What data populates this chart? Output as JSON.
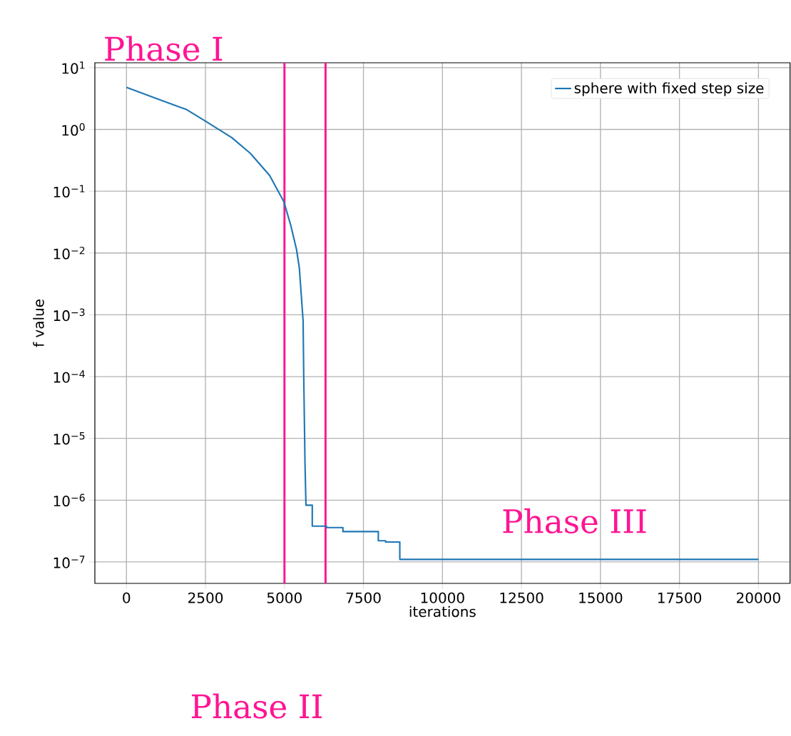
{
  "chart_data": {
    "type": "line",
    "xlabel": "iterations",
    "ylabel": "f value",
    "x": [
      0,
      1000,
      1900,
      2500,
      3330,
      3920,
      4530,
      4980,
      5200,
      5380,
      5470,
      5590,
      5610,
      5650,
      5680,
      5880,
      5880,
      6330,
      6330,
      6850,
      6850,
      7970,
      7970,
      8200,
      8200,
      8650,
      8650,
      20000
    ],
    "series": [
      {
        "name": "sphere with fixed step size",
        "color": "#1f77b4",
        "values": [
          4.8,
          3.1,
          2.1,
          1.36,
          0.74,
          0.41,
          0.18,
          0.068,
          0.028,
          0.0115,
          0.0058,
          0.0008,
          0.0001,
          4e-06,
          8.3e-07,
          8.3e-07,
          3.8e-07,
          3.8e-07,
          3.6e-07,
          3.6e-07,
          3.1e-07,
          3.1e-07,
          2.2e-07,
          2.2e-07,
          2.1e-07,
          2.1e-07,
          1.1e-07,
          1.1e-07
        ]
      }
    ],
    "xlim": [
      -1000,
      21000
    ],
    "ylim": [
      4.5e-08,
      12
    ],
    "xticks": [
      0,
      2500,
      5000,
      7500,
      10000,
      12500,
      15000,
      17500,
      20000
    ],
    "yticks": [
      {
        "value": 1e-07,
        "label": "10$^{−7}$"
      },
      {
        "value": 1e-06,
        "label": "10$^{−6}$"
      },
      {
        "value": 1e-05,
        "label": "10$^{−5}$"
      },
      {
        "value": 0.0001,
        "label": "10$^{−4}$"
      },
      {
        "value": 0.001,
        "label": "10$^{−3}$"
      },
      {
        "value": 0.01,
        "label": "10$^{−2}$"
      },
      {
        "value": 0.1,
        "label": "10$^{−1}$"
      },
      {
        "value": 1,
        "label": "10$^{0}$"
      },
      {
        "value": 10,
        "label": "10$^{1}$"
      }
    ],
    "log": "y",
    "grid": true,
    "legend": "top right",
    "ref_lines": [
      {
        "axis": "x",
        "value": 5000,
        "color": "#ff1493"
      },
      {
        "axis": "x",
        "value": 6300,
        "color": "#ff1493"
      }
    ],
    "annotations": [
      "Phase I",
      "Phase II",
      "Phase III"
    ]
  }
}
